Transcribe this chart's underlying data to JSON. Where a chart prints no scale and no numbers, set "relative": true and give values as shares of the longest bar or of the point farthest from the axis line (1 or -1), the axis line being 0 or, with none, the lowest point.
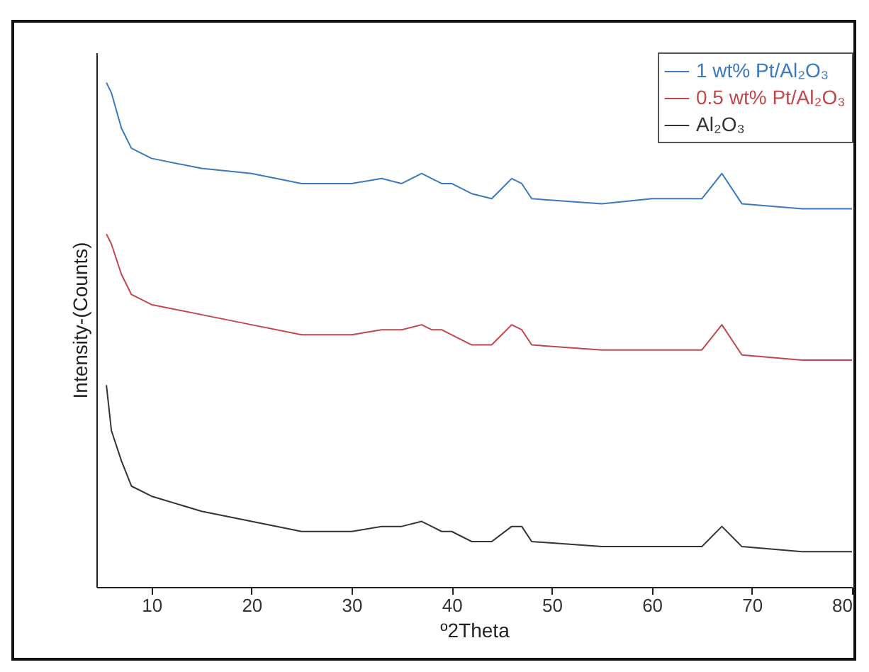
{
  "chart_data": {
    "type": "line",
    "xlabel": "º2Theta",
    "ylabel": "Intensity-(Counts)",
    "relative": true,
    "xlim": [
      4.5,
      80
    ],
    "xticks": [
      10,
      20,
      30,
      40,
      50,
      60,
      70,
      80
    ],
    "legend": "top right",
    "grid": false,
    "x": [
      5.5,
      6,
      7,
      8,
      10,
      15,
      20,
      25,
      28,
      30,
      33,
      35,
      37,
      38,
      39,
      40,
      42,
      44,
      46,
      47,
      48,
      55,
      60,
      62,
      65,
      67,
      69,
      75,
      80
    ],
    "series": [
      {
        "name": "1 wt% Pt/Al₂O₃",
        "color": "#3a78c0",
        "values": [
          1.0,
          0.98,
          0.91,
          0.87,
          0.85,
          0.83,
          0.82,
          0.8,
          0.8,
          0.8,
          0.81,
          0.8,
          0.82,
          0.81,
          0.8,
          0.8,
          0.78,
          0.77,
          0.81,
          0.8,
          0.77,
          0.76,
          0.77,
          0.77,
          0.77,
          0.82,
          0.76,
          0.75,
          0.75
        ]
      },
      {
        "name": "0.5 wt% Pt/Al₂O₃",
        "color": "#c0474a",
        "values": [
          0.7,
          0.68,
          0.62,
          0.58,
          0.56,
          0.54,
          0.52,
          0.5,
          0.5,
          0.5,
          0.51,
          0.51,
          0.52,
          0.51,
          0.51,
          0.5,
          0.48,
          0.48,
          0.52,
          0.51,
          0.48,
          0.47,
          0.47,
          0.47,
          0.47,
          0.52,
          0.46,
          0.45,
          0.45
        ]
      },
      {
        "name": "Al₂O₃",
        "color": "#333333",
        "values": [
          0.4,
          0.31,
          0.25,
          0.2,
          0.18,
          0.15,
          0.13,
          0.11,
          0.11,
          0.11,
          0.12,
          0.12,
          0.13,
          0.12,
          0.11,
          0.11,
          0.09,
          0.09,
          0.12,
          0.12,
          0.09,
          0.08,
          0.08,
          0.08,
          0.08,
          0.12,
          0.08,
          0.07,
          0.07
        ]
      }
    ]
  }
}
